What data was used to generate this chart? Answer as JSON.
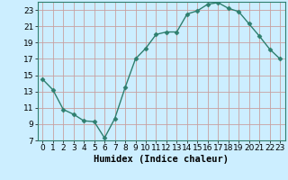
{
  "x": [
    0,
    1,
    2,
    3,
    4,
    5,
    6,
    7,
    8,
    9,
    10,
    11,
    12,
    13,
    14,
    15,
    16,
    17,
    18,
    19,
    20,
    21,
    22,
    23
  ],
  "y": [
    14.5,
    13.2,
    10.8,
    10.2,
    9.4,
    9.3,
    7.3,
    9.7,
    13.5,
    17.0,
    18.3,
    20.0,
    20.3,
    20.3,
    22.5,
    22.9,
    23.7,
    23.9,
    23.2,
    22.8,
    21.3,
    19.8,
    18.2,
    17.0
  ],
  "line_color": "#2e7f6e",
  "marker": "D",
  "marker_size": 2.5,
  "bg_color": "#cceeff",
  "grid_color": "#c8a0a0",
  "xlabel": "Humidex (Indice chaleur)",
  "ylim": [
    7,
    24
  ],
  "xlim": [
    -0.5,
    23.5
  ],
  "yticks": [
    7,
    9,
    11,
    13,
    15,
    17,
    19,
    21,
    23
  ],
  "xticks": [
    0,
    1,
    2,
    3,
    4,
    5,
    6,
    7,
    8,
    9,
    10,
    11,
    12,
    13,
    14,
    15,
    16,
    17,
    18,
    19,
    20,
    21,
    22,
    23
  ],
  "xlabel_fontsize": 7.5,
  "tick_fontsize": 6.5
}
